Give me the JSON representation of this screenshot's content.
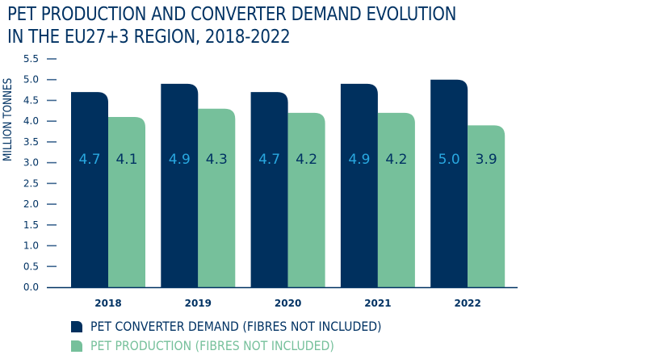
{
  "chart_data": {
    "type": "bar",
    "title": "PET PRODUCTION AND CONVERTER DEMAND EVOLUTION IN THE EU27+3 REGION, 2018-2022",
    "title_lines": [
      "PET PRODUCTION AND CONVERTER DEMAND EVOLUTION",
      "IN THE EU27+3 REGION, 2018-2022"
    ],
    "xlabel": "",
    "ylabel": "MILLION TONNES",
    "categories": [
      "2018",
      "2019",
      "2020",
      "2021",
      "2022"
    ],
    "series": [
      {
        "name": "PET CONVERTER DEMAND (FIBRES NOT INCLUDED)",
        "values": [
          4.7,
          4.9,
          4.7,
          4.9,
          5.0
        ],
        "color": "#00305e",
        "label_color": "#29a8e0"
      },
      {
        "name": "PET PRODUCTION (FIBRES NOT INCLUDED)",
        "values": [
          4.1,
          4.3,
          4.2,
          4.2,
          3.9
        ],
        "color": "#76c09b",
        "label_color": "#003263"
      }
    ],
    "ylim": [
      0,
      5.5
    ],
    "yticks": [
      "0.0",
      "0.5",
      "1.0",
      "1.5",
      "2.0",
      "2.5",
      "3.0",
      "3.5",
      "4.0",
      "4.5",
      "5.0",
      "5.5"
    ],
    "grid": false,
    "legend_position": "bottom-left",
    "data_labels": true
  }
}
